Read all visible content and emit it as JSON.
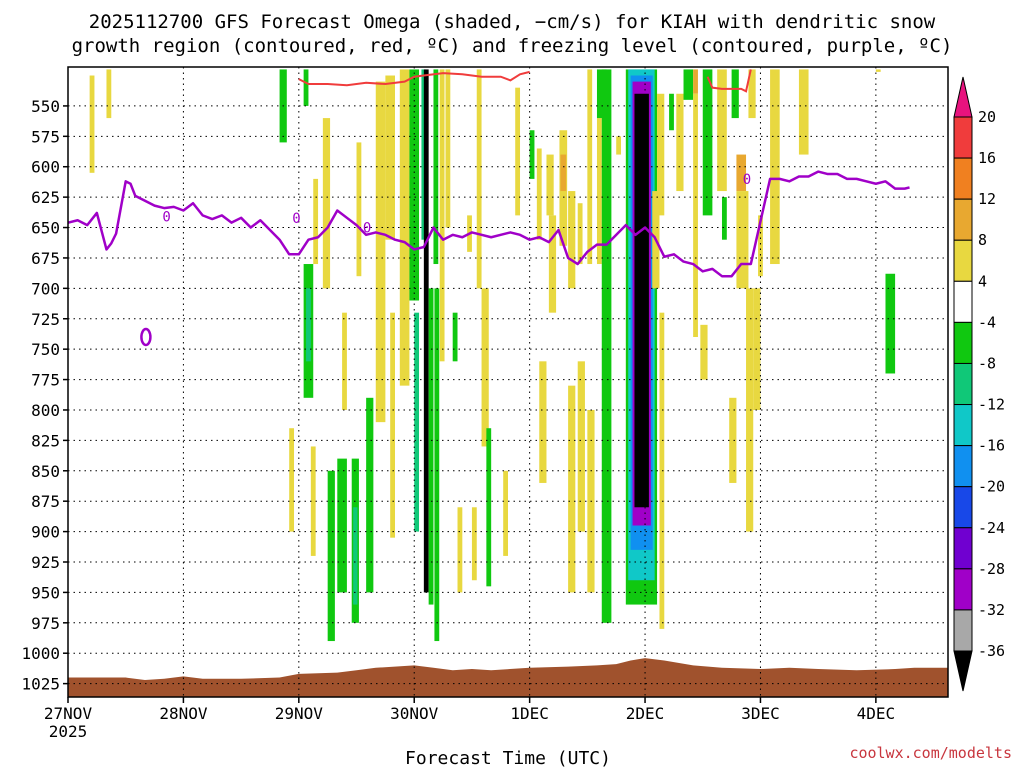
{
  "chart_data": {
    "type": "heatmap",
    "title_line1": "2025112700 GFS Forecast Omega (shaded, −cm/s) for KIAH with dendritic snow",
    "title_line2": "growth region (contoured, red, ºC) and freezing level (contoured, purple, ºC)",
    "xlabel": "Forecast Time (UTC)",
    "ylabel": "",
    "credit": "coolwx.com/modelts",
    "x_ticks": [
      {
        "label": "27NOV",
        "sub": "2025",
        "t": 0
      },
      {
        "label": "28NOV",
        "sub": "",
        "t": 24
      },
      {
        "label": "29NOV",
        "sub": "",
        "t": 48
      },
      {
        "label": "30NOV",
        "sub": "",
        "t": 72
      },
      {
        "label": "1DEC",
        "sub": "",
        "t": 96
      },
      {
        "label": "2DEC",
        "sub": "",
        "t": 120
      },
      {
        "label": "3DEC",
        "sub": "",
        "t": 144
      },
      {
        "label": "4DEC",
        "sub": "",
        "t": 168
      }
    ],
    "xlim_hours": [
      0,
      183
    ],
    "y_ticks": [
      "550",
      "575",
      "600",
      "625",
      "650",
      "675",
      "700",
      "725",
      "750",
      "775",
      "800",
      "825",
      "850",
      "875",
      "900",
      "925",
      "950",
      "975",
      "1000",
      "1025"
    ],
    "ylim_hpa": [
      518,
      1036
    ],
    "y_scale": "linear, inverted (pressure)",
    "grid": true,
    "colorbar": {
      "ticks": [
        "20",
        "16",
        "12",
        "8",
        "4",
        "-4",
        "-8",
        "-12",
        "-16",
        "-20",
        "-24",
        "-28",
        "-32",
        "-36"
      ],
      "bins": [
        {
          "color": "#e8137e"
        },
        {
          "color": "#f03c3c"
        },
        {
          "color": "#f08020"
        },
        {
          "color": "#e8a830"
        },
        {
          "color": "#e8d840"
        },
        {
          "color": "#ffffff"
        },
        {
          "color": "#10c810"
        },
        {
          "color": "#10c878"
        },
        {
          "color": "#10c8c8"
        },
        {
          "color": "#1090f0"
        },
        {
          "color": "#1848e8"
        },
        {
          "color": "#7000d0"
        },
        {
          "color": "#a000c8"
        },
        {
          "color": "#a8a8a8"
        },
        {
          "color": "#000000"
        }
      ]
    },
    "freezing_level_label": "0",
    "freezing_level_hpa": [
      [
        0,
        646
      ],
      [
        2,
        644
      ],
      [
        4,
        648
      ],
      [
        6,
        638
      ],
      [
        8,
        668
      ],
      [
        9,
        663
      ],
      [
        10,
        655
      ],
      [
        12,
        612
      ],
      [
        13,
        614
      ],
      [
        14,
        624
      ],
      [
        16,
        628
      ],
      [
        18,
        632
      ],
      [
        20,
        634
      ],
      [
        22,
        633
      ],
      [
        24,
        636
      ],
      [
        26,
        630
      ],
      [
        28,
        640
      ],
      [
        30,
        643
      ],
      [
        32,
        640
      ],
      [
        34,
        646
      ],
      [
        36,
        642
      ],
      [
        38,
        650
      ],
      [
        40,
        644
      ],
      [
        42,
        652
      ],
      [
        44,
        660
      ],
      [
        46,
        672
      ],
      [
        48,
        672
      ],
      [
        50,
        660
      ],
      [
        52,
        658
      ],
      [
        54,
        650
      ],
      [
        56,
        636
      ],
      [
        58,
        642
      ],
      [
        60,
        648
      ],
      [
        62,
        656
      ],
      [
        64,
        654
      ],
      [
        66,
        656
      ],
      [
        68,
        660
      ],
      [
        70,
        662
      ],
      [
        72,
        668
      ],
      [
        74,
        666
      ],
      [
        76,
        650
      ],
      [
        78,
        660
      ],
      [
        80,
        656
      ],
      [
        82,
        658
      ],
      [
        84,
        654
      ],
      [
        86,
        656
      ],
      [
        88,
        658
      ],
      [
        90,
        656
      ],
      [
        92,
        654
      ],
      [
        94,
        656
      ],
      [
        96,
        660
      ],
      [
        98,
        658
      ],
      [
        100,
        662
      ],
      [
        102,
        652
      ],
      [
        104,
        675
      ],
      [
        106,
        680
      ],
      [
        108,
        670
      ],
      [
        110,
        664
      ],
      [
        112,
        664
      ],
      [
        114,
        656
      ],
      [
        116,
        648
      ],
      [
        118,
        656
      ],
      [
        120,
        650
      ],
      [
        122,
        658
      ],
      [
        124,
        674
      ],
      [
        126,
        672
      ],
      [
        128,
        678
      ],
      [
        130,
        680
      ],
      [
        132,
        686
      ],
      [
        134,
        684
      ],
      [
        136,
        690
      ],
      [
        138,
        690
      ],
      [
        140,
        680
      ],
      [
        142,
        680
      ],
      [
        144,
        645
      ],
      [
        146,
        610
      ],
      [
        148,
        610
      ],
      [
        150,
        612
      ],
      [
        152,
        608
      ],
      [
        154,
        608
      ],
      [
        156,
        604
      ],
      [
        158,
        606
      ],
      [
        160,
        606
      ],
      [
        162,
        610
      ],
      [
        164,
        610
      ],
      [
        166,
        612
      ],
      [
        168,
        614
      ],
      [
        170,
        612
      ],
      [
        172,
        618
      ],
      [
        174,
        618
      ],
      [
        175,
        617
      ]
    ],
    "dgz_top_red_hpa": [
      [
        48,
        528
      ],
      [
        50,
        532
      ],
      [
        54,
        532
      ],
      [
        58,
        533
      ],
      [
        62,
        531
      ],
      [
        66,
        532
      ],
      [
        70,
        530
      ],
      [
        72,
        526
      ],
      [
        74,
        525
      ],
      [
        78,
        523
      ],
      [
        82,
        524
      ],
      [
        86,
        526
      ],
      [
        90,
        526
      ],
      [
        92,
        529
      ],
      [
        94,
        524
      ],
      [
        96,
        522
      ],
      [
        133,
        526
      ],
      [
        134,
        535
      ],
      [
        136,
        536
      ],
      [
        140,
        536
      ],
      [
        141,
        538
      ],
      [
        142,
        520
      ]
    ],
    "omega_cells": [
      {
        "t0": 4.5,
        "t1": 5.5,
        "p0": 525,
        "p1": 605,
        "v": 4
      },
      {
        "t0": 8,
        "t1": 9,
        "p0": 520,
        "p1": 560,
        "v": 4
      },
      {
        "t0": 18,
        "t1": 19,
        "p0": 720,
        "p1": 742,
        "v": 0
      },
      {
        "t0": 44,
        "t1": 45.5,
        "p0": 520,
        "p1": 580,
        "v": -5
      },
      {
        "t0": 49,
        "t1": 50,
        "p0": 520,
        "p1": 550,
        "v": -5
      },
      {
        "t0": 49,
        "t1": 51,
        "p0": 680,
        "p1": 790,
        "v": -6
      },
      {
        "t0": 49.5,
        "t1": 50.5,
        "p0": 700,
        "p1": 760,
        "v": -10
      },
      {
        "t0": 51,
        "t1": 52,
        "p0": 610,
        "p1": 680,
        "v": 4
      },
      {
        "t0": 46,
        "t1": 47,
        "p0": 815,
        "p1": 900,
        "v": 4
      },
      {
        "t0": 50.5,
        "t1": 51.5,
        "p0": 830,
        "p1": 920,
        "v": 4
      },
      {
        "t0": 53,
        "t1": 54.5,
        "p0": 560,
        "p1": 700,
        "v": 4
      },
      {
        "t0": 54,
        "t1": 55.5,
        "p0": 850,
        "p1": 990,
        "v": -6
      },
      {
        "t0": 56,
        "t1": 58,
        "p0": 840,
        "p1": 950,
        "v": -6
      },
      {
        "t0": 57,
        "t1": 58,
        "p0": 720,
        "p1": 800,
        "v": 4
      },
      {
        "t0": 59,
        "t1": 60.5,
        "p0": 840,
        "p1": 975,
        "v": -5
      },
      {
        "t0": 59.3,
        "t1": 60.2,
        "p0": 880,
        "p1": 960,
        "v": -10
      },
      {
        "t0": 60,
        "t1": 61,
        "p0": 580,
        "p1": 690,
        "v": 4
      },
      {
        "t0": 62,
        "t1": 63.5,
        "p0": 790,
        "p1": 950,
        "v": -6
      },
      {
        "t0": 64,
        "t1": 66,
        "p0": 530,
        "p1": 810,
        "v": 4
      },
      {
        "t0": 66,
        "t1": 68,
        "p0": 525,
        "p1": 660,
        "v": 4
      },
      {
        "t0": 67,
        "t1": 68,
        "p0": 720,
        "p1": 905,
        "v": 4
      },
      {
        "t0": 69,
        "t1": 71,
        "p0": 520,
        "p1": 780,
        "v": 4
      },
      {
        "t0": 71,
        "t1": 73,
        "p0": 520,
        "p1": 710,
        "v": -6
      },
      {
        "t0": 72,
        "t1": 73,
        "p0": 720,
        "p1": 900,
        "v": -8
      },
      {
        "t0": 73.5,
        "t1": 74.5,
        "p0": 520,
        "p1": 660,
        "v": -8
      },
      {
        "t0": 74,
        "t1": 75,
        "p0": 520,
        "p1": 950,
        "v": -36
      },
      {
        "t0": 75,
        "t1": 76,
        "p0": 700,
        "p1": 960,
        "v": -6
      },
      {
        "t0": 76,
        "t1": 77,
        "p0": 520,
        "p1": 680,
        "v": -6
      },
      {
        "t0": 76.2,
        "t1": 77.2,
        "p0": 700,
        "p1": 990,
        "v": -6
      },
      {
        "t0": 77.3,
        "t1": 78.3,
        "p0": 520,
        "p1": 760,
        "v": 4
      },
      {
        "t0": 78.5,
        "t1": 79.5,
        "p0": 520,
        "p1": 650,
        "v": 4
      },
      {
        "t0": 80,
        "t1": 81,
        "p0": 720,
        "p1": 760,
        "v": -6
      },
      {
        "t0": 81,
        "t1": 82,
        "p0": 880,
        "p1": 950,
        "v": 4
      },
      {
        "t0": 83,
        "t1": 84,
        "p0": 640,
        "p1": 670,
        "v": 4
      },
      {
        "t0": 84,
        "t1": 85,
        "p0": 880,
        "p1": 940,
        "v": 4
      },
      {
        "t0": 85,
        "t1": 86,
        "p0": 520,
        "p1": 700,
        "v": 4
      },
      {
        "t0": 86,
        "t1": 87.5,
        "p0": 700,
        "p1": 830,
        "v": 4
      },
      {
        "t0": 87,
        "t1": 88,
        "p0": 815,
        "p1": 945,
        "v": -6
      },
      {
        "t0": 90.5,
        "t1": 91.5,
        "p0": 850,
        "p1": 920,
        "v": 4
      },
      {
        "t0": 93,
        "t1": 94,
        "p0": 535,
        "p1": 640,
        "v": 4
      },
      {
        "t0": 96,
        "t1": 97,
        "p0": 570,
        "p1": 610,
        "v": -6
      },
      {
        "t0": 97.5,
        "t1": 98.5,
        "p0": 585,
        "p1": 660,
        "v": 4
      },
      {
        "t0": 98,
        "t1": 99.5,
        "p0": 760,
        "p1": 860,
        "v": 4
      },
      {
        "t0": 99.5,
        "t1": 101,
        "p0": 590,
        "p1": 640,
        "v": 4
      },
      {
        "t0": 100,
        "t1": 101.5,
        "p0": 640,
        "p1": 720,
        "v": 4
      },
      {
        "t0": 102.2,
        "t1": 103.8,
        "p0": 570,
        "p1": 665,
        "v": 4
      },
      {
        "t0": 102.4,
        "t1": 103.6,
        "p0": 590,
        "p1": 620,
        "v": 8
      },
      {
        "t0": 104,
        "t1": 105.5,
        "p0": 620,
        "p1": 700,
        "v": 4
      },
      {
        "t0": 104,
        "t1": 105.5,
        "p0": 780,
        "p1": 950,
        "v": 4
      },
      {
        "t0": 106,
        "t1": 107,
        "p0": 630,
        "p1": 680,
        "v": 4
      },
      {
        "t0": 106,
        "t1": 107.5,
        "p0": 760,
        "p1": 900,
        "v": 4
      },
      {
        "t0": 108,
        "t1": 109,
        "p0": 520,
        "p1": 680,
        "v": 4
      },
      {
        "t0": 108,
        "t1": 109.5,
        "p0": 800,
        "p1": 950,
        "v": 4
      },
      {
        "t0": 110,
        "t1": 111,
        "p0": 560,
        "p1": 680,
        "v": 4
      },
      {
        "t0": 110,
        "t1": 112,
        "p0": 520,
        "p1": 560,
        "v": -6
      },
      {
        "t0": 111,
        "t1": 113,
        "p0": 520,
        "p1": 975,
        "v": -6
      },
      {
        "t0": 114,
        "t1": 115,
        "p0": 575,
        "p1": 590,
        "v": 4
      },
      {
        "t0": 116,
        "t1": 122.5,
        "p0": 520,
        "p1": 960,
        "v": -6
      },
      {
        "t0": 116.5,
        "t1": 122,
        "p0": 520,
        "p1": 940,
        "v": -12
      },
      {
        "t0": 117,
        "t1": 121.6,
        "p0": 525,
        "p1": 915,
        "v": -18
      },
      {
        "t0": 117.4,
        "t1": 121.2,
        "p0": 530,
        "p1": 895,
        "v": -28
      },
      {
        "t0": 117.8,
        "t1": 120.8,
        "p0": 540,
        "p1": 880,
        "v": -36
      },
      {
        "t0": 121.5,
        "t1": 123,
        "p0": 620,
        "p1": 700,
        "v": 4
      },
      {
        "t0": 123,
        "t1": 124,
        "p0": 720,
        "p1": 980,
        "v": 4
      },
      {
        "t0": 122.5,
        "t1": 124,
        "p0": 540,
        "p1": 640,
        "v": 4
      },
      {
        "t0": 125,
        "t1": 126,
        "p0": 540,
        "p1": 570,
        "v": -6
      },
      {
        "t0": 126.5,
        "t1": 128,
        "p0": 540,
        "p1": 620,
        "v": 4
      },
      {
        "t0": 128,
        "t1": 130,
        "p0": 520,
        "p1": 545,
        "v": -6
      },
      {
        "t0": 130,
        "t1": 131,
        "p0": 520,
        "p1": 540,
        "v": 8
      },
      {
        "t0": 130,
        "t1": 131,
        "p0": 540,
        "p1": 740,
        "v": 4
      },
      {
        "t0": 131.5,
        "t1": 133,
        "p0": 730,
        "p1": 775,
        "v": 4
      },
      {
        "t0": 132,
        "t1": 134,
        "p0": 520,
        "p1": 640,
        "v": -6
      },
      {
        "t0": 135,
        "t1": 137,
        "p0": 520,
        "p1": 620,
        "v": 4
      },
      {
        "t0": 136,
        "t1": 137,
        "p0": 625,
        "p1": 660,
        "v": -6
      },
      {
        "t0": 137.5,
        "t1": 139,
        "p0": 790,
        "p1": 860,
        "v": 4
      },
      {
        "t0": 138,
        "t1": 139.5,
        "p0": 520,
        "p1": 560,
        "v": -6
      },
      {
        "t0": 139,
        "t1": 141,
        "p0": 590,
        "p1": 620,
        "v": 8
      },
      {
        "t0": 139,
        "t1": 141.5,
        "p0": 620,
        "p1": 700,
        "v": 4
      },
      {
        "t0": 141,
        "t1": 142.5,
        "p0": 700,
        "p1": 900,
        "v": 4
      },
      {
        "t0": 141.5,
        "t1": 143,
        "p0": 520,
        "p1": 560,
        "v": 4
      },
      {
        "t0": 142.5,
        "t1": 144,
        "p0": 700,
        "p1": 800,
        "v": 4
      },
      {
        "t0": 143.5,
        "t1": 144.5,
        "p0": 640,
        "p1": 690,
        "v": 4
      },
      {
        "t0": 146,
        "t1": 148,
        "p0": 520,
        "p1": 680,
        "v": 4
      },
      {
        "t0": 152,
        "t1": 154,
        "p0": 520,
        "p1": 590,
        "v": 4
      },
      {
        "t0": 168,
        "t1": 169,
        "p0": 520,
        "p1": 522,
        "v": 4
      },
      {
        "t0": 170,
        "t1": 172,
        "p0": 688,
        "p1": 770,
        "v": -6
      }
    ],
    "terrain": {
      "color": "#a0522d",
      "surface_hpa": [
        [
          0,
          1020
        ],
        [
          12,
          1020
        ],
        [
          16,
          1022
        ],
        [
          20,
          1021
        ],
        [
          24,
          1019
        ],
        [
          28,
          1021
        ],
        [
          36,
          1021
        ],
        [
          44,
          1020
        ],
        [
          48,
          1017
        ],
        [
          56,
          1016
        ],
        [
          60,
          1014
        ],
        [
          64,
          1012
        ],
        [
          72,
          1010
        ],
        [
          76,
          1012
        ],
        [
          80,
          1014
        ],
        [
          84,
          1013
        ],
        [
          88,
          1014
        ],
        [
          96,
          1012
        ],
        [
          104,
          1011
        ],
        [
          110,
          1010
        ],
        [
          114,
          1009
        ],
        [
          117,
          1006
        ],
        [
          120,
          1004
        ],
        [
          124,
          1006
        ],
        [
          130,
          1010
        ],
        [
          136,
          1012
        ],
        [
          144,
          1013
        ],
        [
          150,
          1012
        ],
        [
          156,
          1013
        ],
        [
          164,
          1014
        ],
        [
          172,
          1013
        ],
        [
          176,
          1012
        ],
        [
          183,
          1012
        ]
      ]
    }
  }
}
